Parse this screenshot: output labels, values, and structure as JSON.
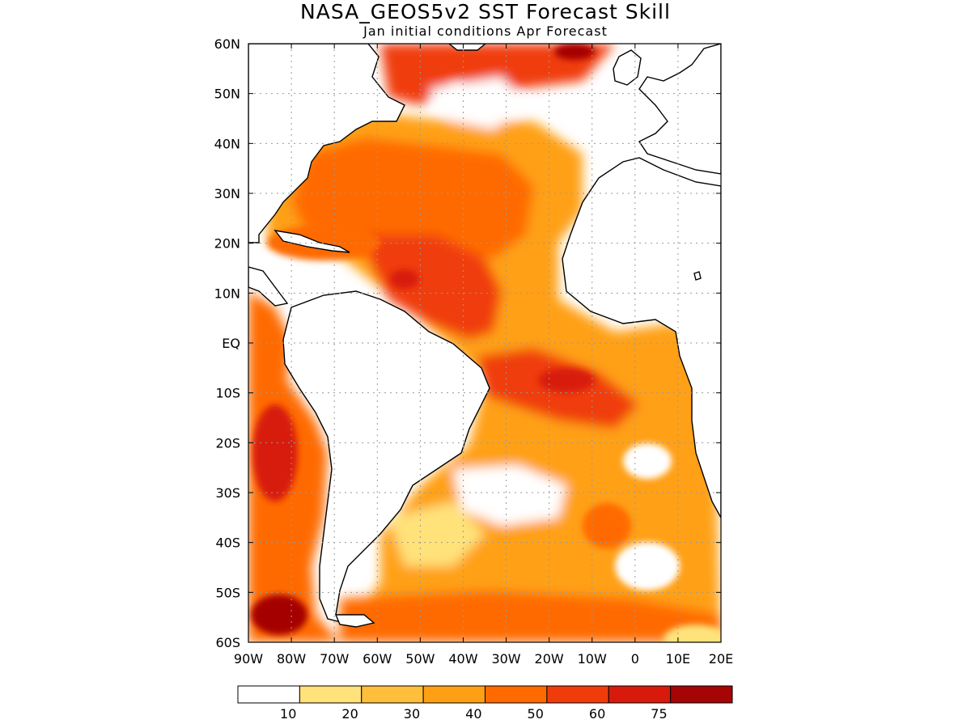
{
  "title": "NASA_GEOS5v2 SST Forecast Skill",
  "subtitle": "Jan initial conditions  Apr Forecast",
  "map": {
    "lon_range": [
      -90,
      20
    ],
    "lat_range": [
      -60,
      60
    ],
    "lat_ticks": [
      {
        "value": 60,
        "label": "60N"
      },
      {
        "value": 50,
        "label": "50N"
      },
      {
        "value": 40,
        "label": "40N"
      },
      {
        "value": 30,
        "label": "30N"
      },
      {
        "value": 20,
        "label": "20N"
      },
      {
        "value": 10,
        "label": "10N"
      },
      {
        "value": 0,
        "label": "EQ"
      },
      {
        "value": -10,
        "label": "10S"
      },
      {
        "value": -20,
        "label": "20S"
      },
      {
        "value": -30,
        "label": "30S"
      },
      {
        "value": -40,
        "label": "40S"
      },
      {
        "value": -50,
        "label": "50S"
      },
      {
        "value": -60,
        "label": "60S"
      }
    ],
    "lon_ticks": [
      {
        "value": -90,
        "label": "90W"
      },
      {
        "value": -80,
        "label": "80W"
      },
      {
        "value": -70,
        "label": "70W"
      },
      {
        "value": -60,
        "label": "60W"
      },
      {
        "value": -50,
        "label": "50W"
      },
      {
        "value": -40,
        "label": "40W"
      },
      {
        "value": -30,
        "label": "30W"
      },
      {
        "value": -20,
        "label": "20W"
      },
      {
        "value": -10,
        "label": "10W"
      },
      {
        "value": 0,
        "label": "0"
      },
      {
        "value": 10,
        "label": "10E"
      },
      {
        "value": 20,
        "label": "20E"
      }
    ],
    "grid": true
  },
  "colorbar": {
    "bins": [
      {
        "color": "#ffffff"
      },
      {
        "color": "#ffe27a"
      },
      {
        "color": "#ffbe3c"
      },
      {
        "color": "#ffa014"
      },
      {
        "color": "#ff6a00"
      },
      {
        "color": "#f03c0a"
      },
      {
        "color": "#d71a0a"
      },
      {
        "color": "#a50505"
      }
    ],
    "labels": [
      "10",
      "20",
      "30",
      "40",
      "50",
      "60",
      "75"
    ]
  },
  "colors": {
    "land": "#ffffff",
    "coast": "#000000"
  }
}
